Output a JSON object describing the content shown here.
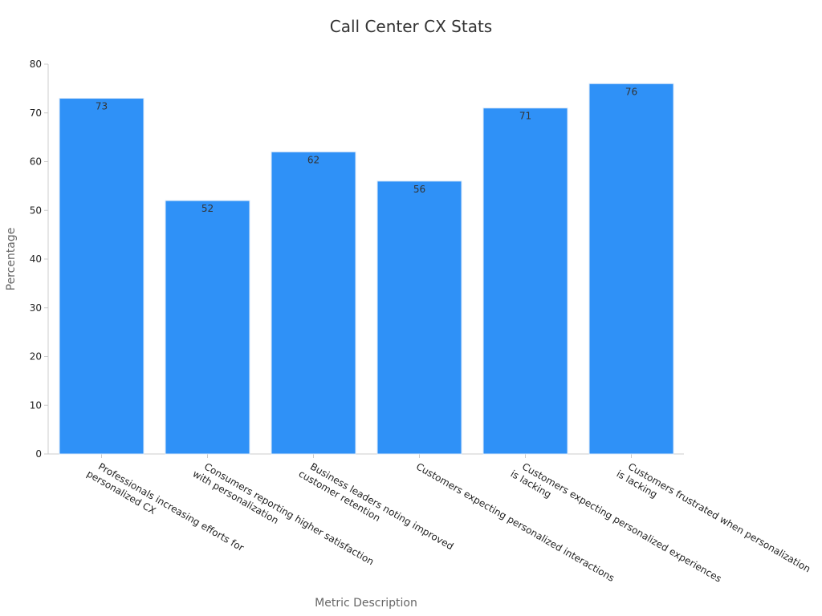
{
  "chart_data": {
    "type": "bar",
    "title": "Call Center CX Stats",
    "xlabel": "Metric Description",
    "ylabel": "Percentage",
    "categories": [
      [
        "Professionals increasing efforts for",
        "personalized CX"
      ],
      [
        "Consumers reporting higher satisfaction",
        "with personalization"
      ],
      [
        "Business leaders noting improved",
        "customer retention"
      ],
      [
        "Customers expecting personalized interactions"
      ],
      [
        "Customers expecting personalized experiences",
        "is lacking"
      ],
      [
        "Customers frustrated when personalization",
        "is lacking"
      ]
    ],
    "values": [
      73,
      52,
      62,
      56,
      71,
      76
    ],
    "ylim": [
      0,
      80
    ],
    "yticks": [
      0,
      10,
      20,
      30,
      40,
      50,
      60,
      70,
      80
    ],
    "bar_color": "#2f91f7",
    "grid": false,
    "legend": "none"
  }
}
